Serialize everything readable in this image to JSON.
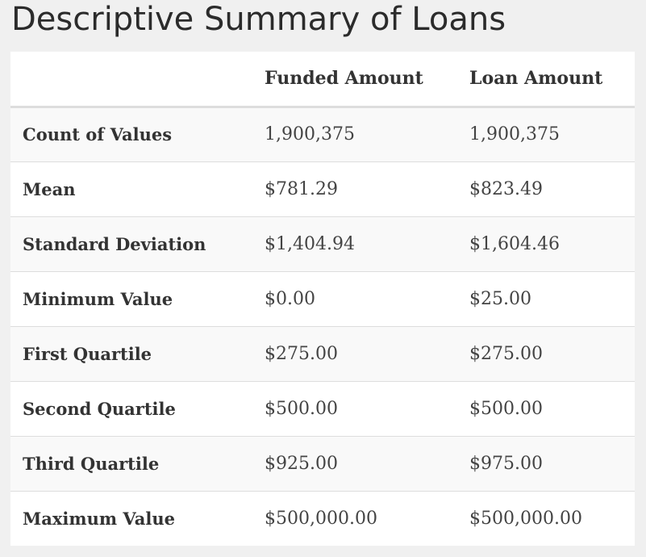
{
  "title": "Descriptive Summary of Loans",
  "table": {
    "headers": [
      "",
      "Funded Amount",
      "Loan Amount"
    ],
    "rows": [
      {
        "label": "Count of Values",
        "funded": "1,900,375",
        "loan": "1,900,375"
      },
      {
        "label": "Mean",
        "funded": "$781.29",
        "loan": "$823.49"
      },
      {
        "label": "Standard Deviation",
        "funded": "$1,404.94",
        "loan": "$1,604.46"
      },
      {
        "label": "Minimum Value",
        "funded": "$0.00",
        "loan": "$25.00"
      },
      {
        "label": "First Quartile",
        "funded": "$275.00",
        "loan": "$275.00"
      },
      {
        "label": "Second Quartile",
        "funded": "$500.00",
        "loan": "$500.00"
      },
      {
        "label": "Third Quartile",
        "funded": "$925.00",
        "loan": "$975.00"
      },
      {
        "label": "Maximum Value",
        "funded": "$500,000.00",
        "loan": "$500,000.00"
      }
    ]
  }
}
